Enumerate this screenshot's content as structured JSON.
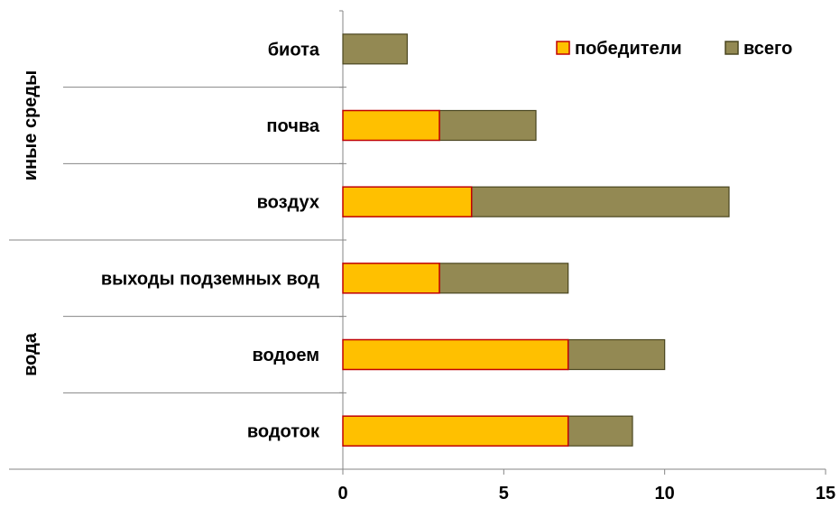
{
  "chart_data": {
    "type": "bar",
    "orientation": "horizontal",
    "stacked": true,
    "categories": [
      "водоток",
      "водоем",
      "выходы подземных вод",
      "воздух",
      "почва",
      "биота"
    ],
    "groups": [
      {
        "label": "вода",
        "categories": [
          "водоток",
          "водоем",
          "выходы подземных вод"
        ]
      },
      {
        "label": "иные среды",
        "categories": [
          "воздух",
          "почва",
          "биота"
        ]
      }
    ],
    "series": [
      {
        "name": "победители",
        "values": [
          7,
          7,
          3,
          4,
          3,
          0
        ],
        "color": "#FFC000",
        "stroke": "#C00000"
      },
      {
        "name": "всего",
        "values": [
          9,
          10,
          7,
          12,
          6,
          2
        ],
        "color": "#938953",
        "stroke": "#4A4620"
      }
    ],
    "xlim": [
      0,
      15
    ],
    "xticks": [
      0,
      5,
      10,
      15
    ],
    "legend_position": "top-right",
    "grid": false
  }
}
